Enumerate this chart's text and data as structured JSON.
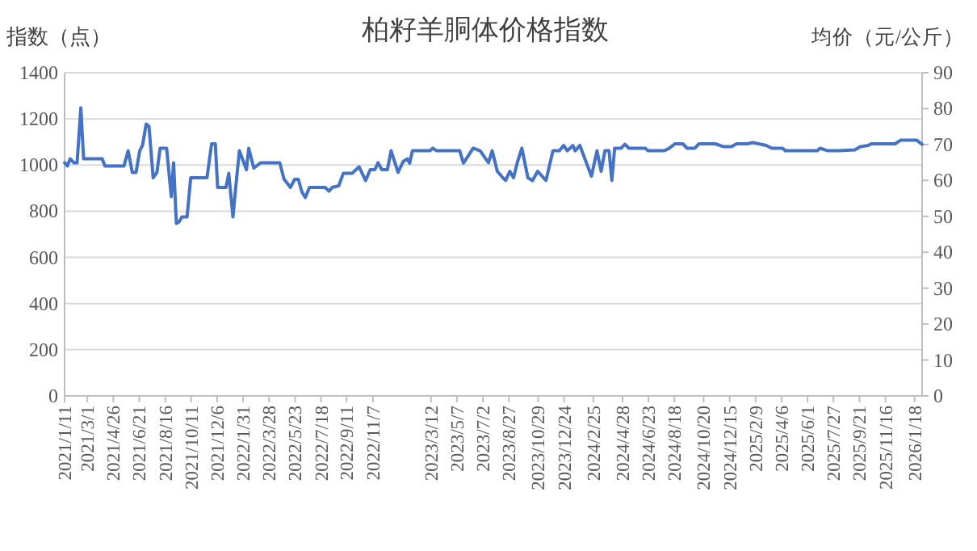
{
  "chart_data": {
    "type": "line",
    "title": "柏籽羊胴体价格指数",
    "ylabel": "指数（点）",
    "y2label": "均价（元/公斤）",
    "grid": "y",
    "marker": "none",
    "line_style": "solid",
    "xlim": [
      "2021-01-11",
      "2026-02-03"
    ],
    "xticks": [
      {
        "value": "2021-01-11",
        "label": "2021/1/11"
      },
      {
        "value": "2021-03-01",
        "label": "2021/3/1"
      },
      {
        "value": "2021-04-26",
        "label": "2021/4/26"
      },
      {
        "value": "2021-06-21",
        "label": "2021/6/21"
      },
      {
        "value": "2021-08-16",
        "label": "2021/8/16"
      },
      {
        "value": "2021-10-11",
        "label": "2021/10/11"
      },
      {
        "value": "2021-12-06",
        "label": "2021/12/6"
      },
      {
        "value": "2022-01-31",
        "label": "2022/1/31"
      },
      {
        "value": "2022-03-28",
        "label": "2022/3/28"
      },
      {
        "value": "2022-05-23",
        "label": "2022/5/23"
      },
      {
        "value": "2022-07-18",
        "label": "2022/7/18"
      },
      {
        "value": "2022-09-11",
        "label": "2022/9/11"
      },
      {
        "value": "2022-11-07",
        "label": "2022/11/7"
      },
      {
        "value": "2023-03-12",
        "label": "2023/3/12"
      },
      {
        "value": "2023-05-07",
        "label": "2023/5/7"
      },
      {
        "value": "2023-07-02",
        "label": "2023/7/2"
      },
      {
        "value": "2023-08-27",
        "label": "2023/8/27"
      },
      {
        "value": "2023-10-29",
        "label": "2023/10/29"
      },
      {
        "value": "2023-12-24",
        "label": "2023/12/24"
      },
      {
        "value": "2024-02-25",
        "label": "2024/2/25"
      },
      {
        "value": "2024-04-28",
        "label": "2024/4/28"
      },
      {
        "value": "2024-06-23",
        "label": "2024/6/23"
      },
      {
        "value": "2024-08-18",
        "label": "2024/8/18"
      },
      {
        "value": "2024-10-20",
        "label": "2024/10/20"
      },
      {
        "value": "2024-12-15",
        "label": "2024/12/15"
      },
      {
        "value": "2025-02-09",
        "label": "2025/2/9"
      },
      {
        "value": "2025-04-06",
        "label": "2025/4/6"
      },
      {
        "value": "2025-06-01",
        "label": "2025/6/1"
      },
      {
        "value": "2025-07-27",
        "label": "2025/7/27"
      },
      {
        "value": "2025-09-21",
        "label": "2025/9/21"
      },
      {
        "value": "2025-11-16",
        "label": "2025/11/16"
      },
      {
        "value": "2026-01-18",
        "label": "2026/1/18"
      }
    ],
    "ylim": [
      0,
      1400
    ],
    "yticks": [
      0,
      200,
      400,
      600,
      800,
      1000,
      1200,
      1400
    ],
    "y2lim": [
      0,
      90
    ],
    "y2ticks": [
      0,
      10,
      20,
      30,
      40,
      50,
      60,
      70,
      80,
      90
    ],
    "series": [
      {
        "color": "#4472c4",
        "x": [
          "2021-01-11",
          "2021-01-17",
          "2021-01-23",
          "2021-01-31",
          "2021-02-07",
          "2021-02-15",
          "2021-02-21",
          "2021-04-02",
          "2021-04-08",
          "2021-05-19",
          "2021-05-28",
          "2021-06-06",
          "2021-06-14",
          "2021-06-22",
          "2021-06-28",
          "2021-07-06",
          "2021-07-12",
          "2021-07-21",
          "2021-07-29",
          "2021-08-05",
          "2021-08-19",
          "2021-08-29",
          "2021-09-03",
          "2021-09-09",
          "2021-09-15",
          "2021-09-21",
          "2021-10-02",
          "2021-10-10",
          "2021-11-14",
          "2021-11-24",
          "2021-12-02",
          "2021-12-07",
          "2021-12-25",
          "2021-12-31",
          "2022-01-09",
          "2022-01-17",
          "2022-01-23",
          "2022-02-07",
          "2022-02-12",
          "2022-02-23",
          "2022-03-10",
          "2022-04-20",
          "2022-04-29",
          "2022-05-13",
          "2022-05-22",
          "2022-05-30",
          "2022-06-07",
          "2022-06-14",
          "2022-06-23",
          "2022-07-27",
          "2022-08-04",
          "2022-08-11",
          "2022-08-25",
          "2022-09-04",
          "2022-09-23",
          "2022-10-08",
          "2022-10-22",
          "2022-11-01",
          "2022-11-11",
          "2022-11-18",
          "2022-11-26",
          "2022-12-08",
          "2022-12-16",
          "2022-12-31",
          "2023-01-11",
          "2023-01-20",
          "2023-01-25",
          "2023-01-31",
          "2023-03-10",
          "2023-03-16",
          "2023-03-24",
          "2023-05-13",
          "2023-05-21",
          "2023-06-11",
          "2023-06-26",
          "2023-07-14",
          "2023-07-22",
          "2023-08-02",
          "2023-08-14",
          "2023-08-20",
          "2023-08-29",
          "2023-09-06",
          "2023-09-14",
          "2023-09-24",
          "2023-10-07",
          "2023-10-17",
          "2023-10-28",
          "2023-11-15",
          "2023-11-30",
          "2023-12-14",
          "2023-12-23",
          "2023-12-31",
          "2024-01-12",
          "2024-01-17",
          "2024-01-27",
          "2024-02-21",
          "2024-03-04",
          "2024-03-13",
          "2024-03-21",
          "2024-03-30",
          "2024-04-05",
          "2024-04-11",
          "2024-04-25",
          "2024-05-03",
          "2024-05-12",
          "2024-06-16",
          "2024-06-22",
          "2024-07-27",
          "2024-08-07",
          "2024-08-19",
          "2024-09-05",
          "2024-09-14",
          "2024-10-01",
          "2024-10-10",
          "2024-11-14",
          "2024-12-01",
          "2024-12-19",
          "2024-12-30",
          "2025-01-22",
          "2025-02-03",
          "2025-03-04",
          "2025-03-16",
          "2025-04-08",
          "2025-04-14",
          "2025-06-22",
          "2025-06-28",
          "2025-07-15",
          "2025-08-08",
          "2025-09-11",
          "2025-09-23",
          "2025-10-10",
          "2025-10-16",
          "2025-12-07",
          "2025-12-19",
          "2026-01-22",
          "2026-02-03"
        ],
        "values": [
          1010,
          996,
          1027,
          1010,
          1010,
          1248,
          1027,
          1027,
          996,
          996,
          1062,
          968,
          968,
          1062,
          1085,
          1178,
          1167,
          945,
          968,
          1073,
          1073,
          863,
          1010,
          747,
          754,
          775,
          775,
          945,
          945,
          1092,
          1092,
          903,
          903,
          964,
          775,
          945,
          1062,
          980,
          1073,
          987,
          1010,
          1010,
          940,
          903,
          938,
          938,
          882,
          859,
          903,
          903,
          887,
          903,
          910,
          964,
          964,
          992,
          933,
          980,
          980,
          1010,
          980,
          980,
          1062,
          968,
          1015,
          1027,
          1008,
          1062,
          1062,
          1073,
          1062,
          1062,
          1008,
          1073,
          1062,
          1010,
          1062,
          973,
          945,
          933,
          973,
          945,
          1010,
          1073,
          945,
          933,
          973,
          933,
          1062,
          1062,
          1085,
          1062,
          1085,
          1062,
          1085,
          952,
          1062,
          973,
          1062,
          1062,
          933,
          1073,
          1073,
          1090,
          1073,
          1073,
          1062,
          1062,
          1073,
          1092,
          1092,
          1073,
          1073,
          1092,
          1092,
          1080,
          1080,
          1092,
          1092,
          1097,
          1085,
          1073,
          1073,
          1062,
          1062,
          1073,
          1062,
          1062,
          1066,
          1080,
          1085,
          1092,
          1092,
          1108,
          1108,
          1090
        ]
      }
    ]
  }
}
